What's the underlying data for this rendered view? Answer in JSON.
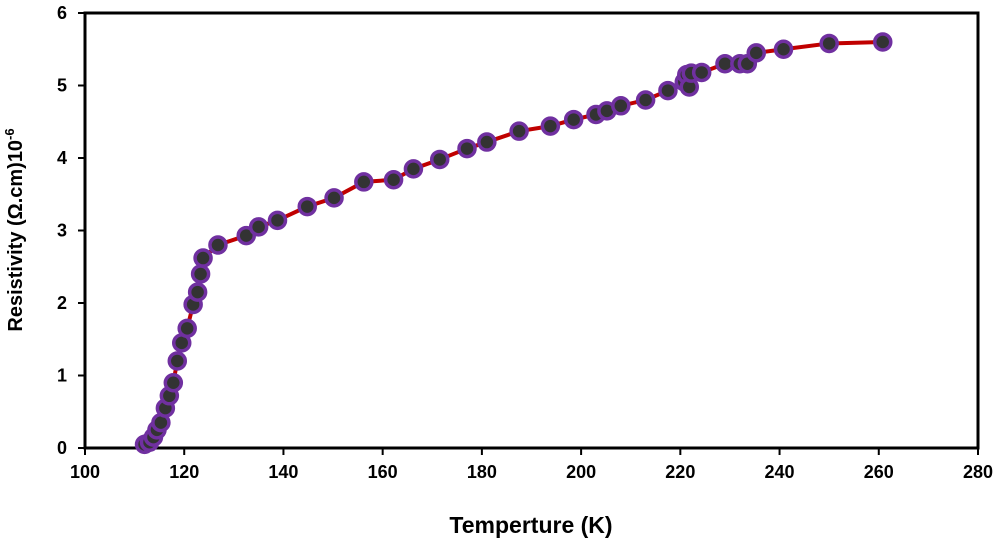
{
  "chart_data": {
    "type": "line",
    "title": "",
    "xlabel": "Temperture (K)",
    "ylabel_main": "Resistivity (Ω.cm)10",
    "ylabel_exponent": "-6",
    "xlim": [
      100,
      280
    ],
    "ylim": [
      0,
      6
    ],
    "x_ticks": [
      100,
      120,
      140,
      160,
      180,
      200,
      220,
      240,
      260,
      280
    ],
    "y_ticks": [
      0,
      1,
      2,
      3,
      4,
      5,
      6
    ],
    "grid": false,
    "line_color": "#c00000",
    "marker_fill": "#333333",
    "marker_edge": "#7030a0",
    "series": [
      {
        "name": "Resistivity",
        "x": [
          112.0,
          113.0,
          113.8,
          114.5,
          115.3,
          116.2,
          117.0,
          117.8,
          118.6,
          119.5,
          120.6,
          121.8,
          122.7,
          123.3,
          123.8,
          126.8,
          132.5,
          135.0,
          138.8,
          144.8,
          150.2,
          156.2,
          162.2,
          166.2,
          171.5,
          177.0,
          181.0,
          187.5,
          193.8,
          198.5,
          203.0,
          205.2,
          208.0,
          213.0,
          217.5,
          220.8,
          221.3,
          221.8,
          222.2,
          224.3,
          229.0,
          232.0,
          233.5,
          235.3,
          240.8,
          250.0,
          260.8
        ],
        "y": [
          0.05,
          0.08,
          0.15,
          0.25,
          0.35,
          0.55,
          0.72,
          0.9,
          1.2,
          1.45,
          1.65,
          1.98,
          2.15,
          2.4,
          2.62,
          2.8,
          2.93,
          3.05,
          3.14,
          3.33,
          3.45,
          3.67,
          3.7,
          3.85,
          3.98,
          4.13,
          4.22,
          4.37,
          4.44,
          4.53,
          4.6,
          4.65,
          4.72,
          4.8,
          4.93,
          5.05,
          5.15,
          4.98,
          5.17,
          5.18,
          5.3,
          5.3,
          5.3,
          5.45,
          5.5,
          5.58,
          5.6
        ]
      }
    ]
  }
}
